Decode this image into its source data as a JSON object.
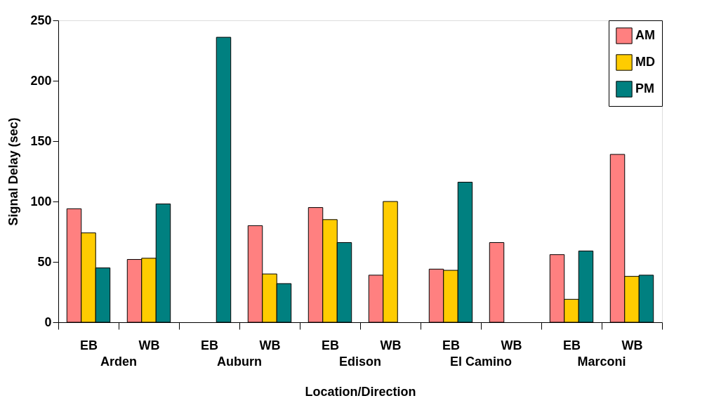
{
  "chart_data": {
    "type": "bar",
    "xlabel": "Location/Direction",
    "ylabel": "Signal Delay (sec)",
    "categories": [
      "EB",
      "WB",
      "EB",
      "WB",
      "EB",
      "WB",
      "EB",
      "WB",
      "EB",
      "WB"
    ],
    "series": [
      {
        "name": "AM",
        "color": "#ff8080",
        "values": [
          94,
          52,
          null,
          80,
          95,
          39,
          44,
          66,
          56,
          139
        ]
      },
      {
        "name": "MD",
        "color": "#ffcc00",
        "values": [
          74,
          53,
          null,
          40,
          85,
          100,
          43,
          null,
          19,
          38
        ]
      },
      {
        "name": "PM",
        "color": "#008080",
        "values": [
          45,
          98,
          236,
          32,
          66,
          null,
          116,
          null,
          59,
          39
        ]
      }
    ],
    "annotations": [
      "Arden",
      "Auburn",
      "Edison",
      "El Camino",
      "Marconi"
    ],
    "ylim": [
      0,
      250
    ],
    "yticks": [
      0,
      50,
      100,
      150,
      200,
      250
    ],
    "grid": false,
    "legend": "top right"
  }
}
